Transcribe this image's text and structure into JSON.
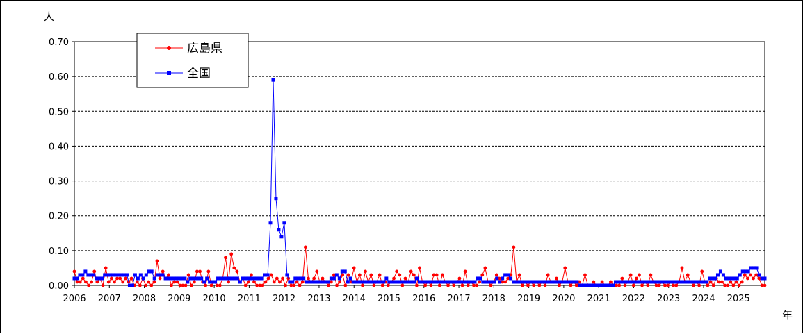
{
  "chart_data": {
    "type": "line",
    "ylabel": "人",
    "xlabel": "年",
    "ylim": [
      0,
      0.7
    ],
    "yticks": [
      "0.00",
      "0.10",
      "0.20",
      "0.30",
      "0.40",
      "0.50",
      "0.60",
      "0.70"
    ],
    "xlim": [
      2006,
      2025.75
    ],
    "xticks": [
      "2006",
      "2007",
      "2008",
      "2009",
      "2010",
      "2011",
      "2012",
      "2013",
      "2014",
      "2015",
      "2016",
      "2017",
      "2018",
      "2019",
      "2020",
      "2021",
      "2022",
      "2023",
      "2024",
      "2025"
    ],
    "grid": "horizontal-dashed",
    "legend_position": "top-left",
    "series": [
      {
        "name": "広島県",
        "color": "#ff0000",
        "marker": "circle",
        "values": [
          0.04,
          0.01,
          0.01,
          0.02,
          0.01,
          0.0,
          0.01,
          0.04,
          0.01,
          0.02,
          0.0,
          0.05,
          0.01,
          0.02,
          0.01,
          0.02,
          0.02,
          0.01,
          0.02,
          0.01,
          0.02,
          0.0,
          0.01,
          0.0,
          0.02,
          0.0,
          0.01,
          0.0,
          0.01,
          0.07,
          0.02,
          0.04,
          0.02,
          0.03,
          0.0,
          0.01,
          0.01,
          0.0,
          0.0,
          0.0,
          0.03,
          0.0,
          0.01,
          0.04,
          0.04,
          0.01,
          0.0,
          0.04,
          0.0,
          0.01,
          0.0,
          0.0,
          0.02,
          0.08,
          0.01,
          0.09,
          0.05,
          0.04,
          0.01,
          0.02,
          0.0,
          0.01,
          0.03,
          0.01,
          0.0,
          0.0,
          0.0,
          0.01,
          0.02,
          0.03,
          0.01,
          0.02,
          0.01,
          0.02,
          0.0,
          0.02,
          0.0,
          0.0,
          0.01,
          0.0,
          0.01,
          0.11,
          0.02,
          0.01,
          0.02,
          0.04,
          0.01,
          0.02,
          0.01,
          0.0,
          0.01,
          0.03,
          0.0,
          0.01,
          0.03,
          0.0,
          0.03,
          0.01,
          0.05,
          0.01,
          0.03,
          0.0,
          0.04,
          0.01,
          0.03,
          0.0,
          0.01,
          0.03,
          0.0,
          0.01,
          0.0,
          0.01,
          0.02,
          0.04,
          0.03,
          0.0,
          0.02,
          0.01,
          0.04,
          0.03,
          0.0,
          0.05,
          0.01,
          0.0,
          0.01,
          0.0,
          0.03,
          0.03,
          0.0,
          0.03,
          0.01,
          0.0,
          0.01,
          0.0,
          0.01,
          0.02,
          0.0,
          0.04,
          0.0,
          0.01,
          0.0,
          0.0,
          0.01,
          0.03,
          0.05,
          0.01,
          0.0,
          0.01,
          0.03,
          0.02,
          0.01,
          0.01,
          0.02,
          0.03,
          0.11,
          0.01,
          0.03,
          0.0,
          0.01,
          0.0,
          0.01,
          0.0,
          0.01,
          0.0,
          0.01,
          0.0,
          0.03,
          0.01,
          0.01,
          0.02,
          0.0,
          0.01,
          0.05,
          0.01,
          0.0,
          0.01,
          0.0,
          0.01,
          0.0,
          0.03,
          0.0,
          0.0,
          0.01,
          0.0,
          0.0,
          0.01,
          0.0,
          0.0,
          0.01,
          0.0,
          0.0,
          0.0,
          0.02,
          0.0,
          0.01,
          0.03,
          0.0,
          0.02,
          0.03,
          0.0,
          0.01,
          0.0,
          0.03,
          0.01,
          0.0,
          0.0,
          0.01,
          0.0,
          0.0,
          0.01,
          0.0,
          0.0,
          0.01,
          0.05,
          0.01,
          0.03,
          0.01,
          0.0,
          0.01,
          0.0,
          0.04,
          0.01,
          0.0,
          0.01,
          0.0,
          0.02,
          0.01,
          0.01,
          0.0,
          0.0,
          0.01,
          0.0,
          0.01,
          0.0,
          0.01,
          0.03,
          0.02,
          0.03,
          0.02,
          0.03,
          0.02,
          0.0,
          0.0
        ]
      },
      {
        "name": "全国",
        "color": "#0000ff",
        "marker": "square",
        "values": [
          0.02,
          0.02,
          0.03,
          0.03,
          0.04,
          0.03,
          0.03,
          0.03,
          0.02,
          0.02,
          0.02,
          0.03,
          0.03,
          0.03,
          0.03,
          0.03,
          0.03,
          0.03,
          0.03,
          0.03,
          0.0,
          0.0,
          0.03,
          0.02,
          0.03,
          0.02,
          0.03,
          0.04,
          0.04,
          0.02,
          0.03,
          0.03,
          0.03,
          0.02,
          0.02,
          0.02,
          0.02,
          0.02,
          0.02,
          0.02,
          0.02,
          0.01,
          0.02,
          0.02,
          0.02,
          0.02,
          0.02,
          0.01,
          0.02,
          0.01,
          0.01,
          0.01,
          0.02,
          0.02,
          0.02,
          0.02,
          0.02,
          0.02,
          0.02,
          0.02,
          0.01,
          0.02,
          0.02,
          0.02,
          0.02,
          0.02,
          0.02,
          0.02,
          0.02,
          0.03,
          0.03,
          0.18,
          0.59,
          0.25,
          0.16,
          0.14,
          0.18,
          0.03,
          0.01,
          0.01,
          0.02,
          0.02,
          0.02,
          0.02,
          0.01,
          0.01,
          0.01,
          0.01,
          0.01,
          0.01,
          0.01,
          0.01,
          0.01,
          0.02,
          0.02,
          0.03,
          0.02,
          0.04,
          0.04,
          0.01,
          0.02,
          0.01,
          0.01,
          0.01,
          0.01,
          0.01,
          0.01,
          0.01,
          0.01,
          0.01,
          0.01,
          0.01,
          0.01,
          0.02,
          0.01,
          0.01,
          0.01,
          0.01,
          0.01,
          0.01,
          0.01,
          0.01,
          0.01,
          0.01,
          0.02,
          0.01,
          0.01,
          0.01,
          0.01,
          0.01,
          0.01,
          0.01,
          0.01,
          0.01,
          0.01,
          0.01,
          0.01,
          0.01,
          0.01,
          0.01,
          0.01,
          0.01,
          0.01,
          0.01,
          0.01,
          0.01,
          0.02,
          0.02,
          0.01,
          0.01,
          0.01,
          0.01,
          0.01,
          0.02,
          0.01,
          0.02,
          0.03,
          0.03,
          0.02,
          0.01,
          0.01,
          0.01,
          0.01,
          0.01,
          0.01,
          0.01,
          0.01,
          0.01,
          0.01,
          0.01,
          0.01,
          0.01,
          0.01,
          0.01,
          0.01,
          0.01,
          0.01,
          0.01,
          0.01,
          0.01,
          0.01,
          0.01,
          0.01,
          0.0,
          0.0,
          0.0,
          0.0,
          0.0,
          0.0,
          0.0,
          0.0,
          0.0,
          0.0,
          0.0,
          0.0,
          0.0,
          0.01,
          0.01,
          0.01,
          0.01,
          0.01,
          0.01,
          0.01,
          0.01,
          0.01,
          0.01,
          0.01,
          0.01,
          0.01,
          0.01,
          0.01,
          0.01,
          0.01,
          0.01,
          0.01,
          0.01,
          0.01,
          0.01,
          0.01,
          0.01,
          0.01,
          0.01,
          0.01,
          0.01,
          0.01,
          0.01,
          0.01,
          0.01,
          0.01,
          0.01,
          0.02,
          0.02,
          0.02,
          0.03,
          0.04,
          0.03,
          0.02,
          0.02,
          0.02,
          0.02,
          0.02,
          0.03,
          0.04,
          0.04,
          0.04,
          0.05,
          0.05,
          0.05,
          0.03,
          0.02,
          0.02
        ]
      }
    ]
  }
}
